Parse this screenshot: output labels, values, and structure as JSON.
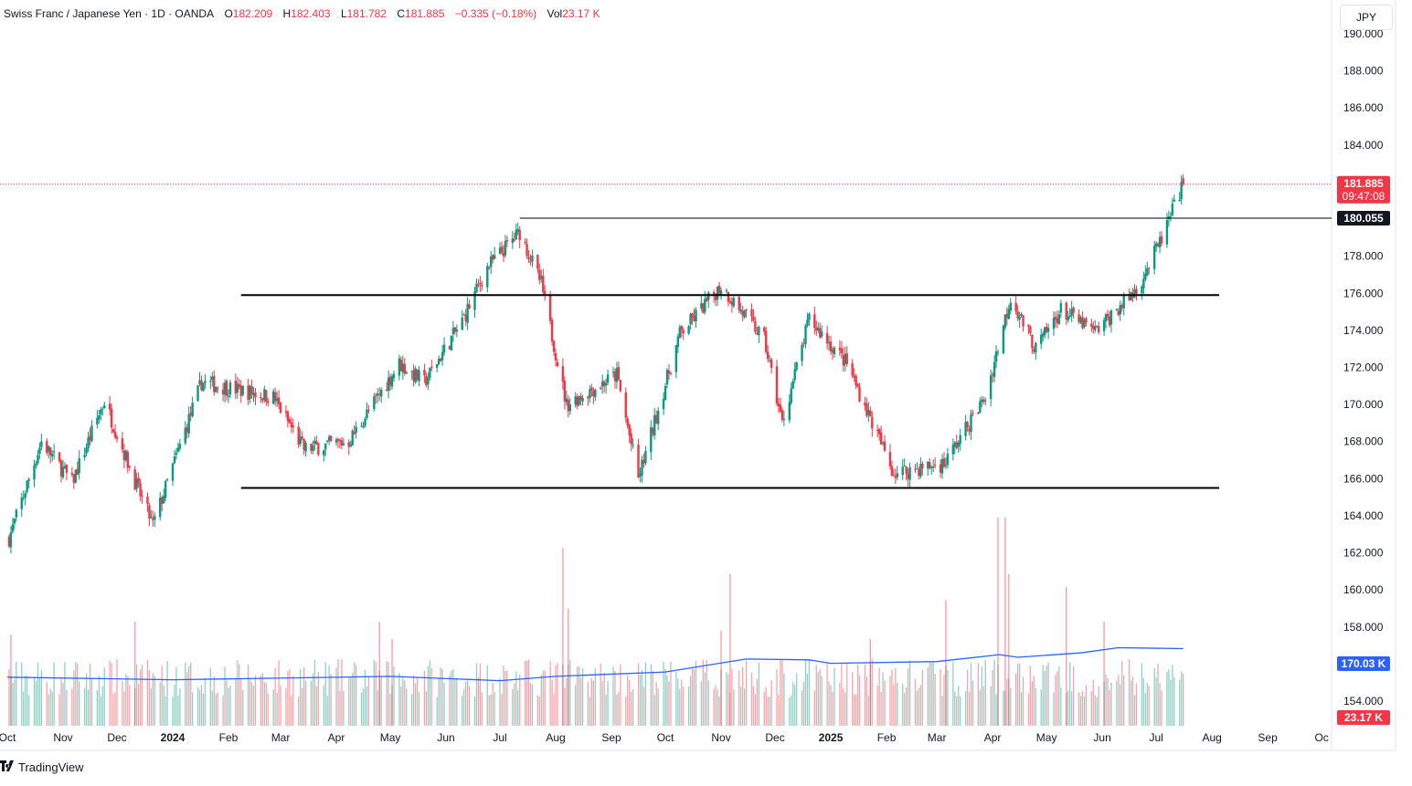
{
  "legend": {
    "title": "Swiss Franc / Japanese Yen · 1D · OANDA",
    "o_label": "O",
    "o_value": "182.209",
    "h_label": "H",
    "h_value": "182.403",
    "l_label": "L",
    "l_value": "181.782",
    "c_label": "C",
    "c_value": "181.885",
    "change": "−0.335 (−0.18%)",
    "vol_label": "Vol",
    "vol_value": "23.17 K"
  },
  "currency_button": "JPY",
  "footer": {
    "brand": "TradingView"
  },
  "colors": {
    "up": "#089981",
    "down": "#f23645",
    "vol_ma": "#2962ff",
    "price_line": "#f23645",
    "grid": "#f0f3fa"
  },
  "chart_data": {
    "type": "candlestick",
    "symbol": "CHFJPY",
    "timeframe": "1D",
    "y_axis": {
      "ticks": [
        "154.000",
        "156.000",
        "158.000",
        "160.000",
        "162.000",
        "164.000",
        "166.000",
        "168.000",
        "170.000",
        "172.000",
        "174.000",
        "176.000",
        "178.000",
        "180.000",
        "182.000",
        "184.000",
        "186.000",
        "188.000",
        "190.000"
      ],
      "range": [
        153.0,
        190.5
      ]
    },
    "x_axis": {
      "ticks": [
        {
          "label": "Oct",
          "bold": false
        },
        {
          "label": "Nov",
          "bold": false
        },
        {
          "label": "Dec",
          "bold": false
        },
        {
          "label": "2024",
          "bold": true
        },
        {
          "label": "Feb",
          "bold": false
        },
        {
          "label": "Mar",
          "bold": false
        },
        {
          "label": "Apr",
          "bold": false
        },
        {
          "label": "May",
          "bold": false
        },
        {
          "label": "Jun",
          "bold": false
        },
        {
          "label": "Jul",
          "bold": false
        },
        {
          "label": "Aug",
          "bold": false
        },
        {
          "label": "Sep",
          "bold": false
        },
        {
          "label": "Oct",
          "bold": false
        },
        {
          "label": "Nov",
          "bold": false
        },
        {
          "label": "Dec",
          "bold": false
        },
        {
          "label": "2025",
          "bold": true
        },
        {
          "label": "Feb",
          "bold": false
        },
        {
          "label": "Mar",
          "bold": false
        },
        {
          "label": "Apr",
          "bold": false
        },
        {
          "label": "May",
          "bold": false
        },
        {
          "label": "Jun",
          "bold": false
        },
        {
          "label": "Jul",
          "bold": false
        },
        {
          "label": "Aug",
          "bold": false
        },
        {
          "label": "Sep",
          "bold": false
        },
        {
          "label": "Oc",
          "bold": false
        }
      ],
      "range": [
        "2023-10-01",
        "2025-10-05"
      ]
    },
    "price_path": [
      {
        "date": "2023-10-01",
        "close": 162.5
      },
      {
        "date": "2023-10-20",
        "close": 168.0
      },
      {
        "date": "2023-11-06",
        "close": 165.8
      },
      {
        "date": "2023-11-24",
        "close": 170.2
      },
      {
        "date": "2023-12-12",
        "close": 165.6
      },
      {
        "date": "2023-12-21",
        "close": 163.5
      },
      {
        "date": "2024-01-17",
        "close": 171.2
      },
      {
        "date": "2024-02-26",
        "close": 170.4
      },
      {
        "date": "2024-03-14",
        "close": 167.6
      },
      {
        "date": "2024-04-08",
        "close": 168.0
      },
      {
        "date": "2024-05-06",
        "close": 172.2
      },
      {
        "date": "2024-05-20",
        "close": 171.2
      },
      {
        "date": "2024-06-10",
        "close": 174.5
      },
      {
        "date": "2024-06-24",
        "close": 177.4
      },
      {
        "date": "2024-07-12",
        "close": 179.3
      },
      {
        "date": "2024-07-24",
        "close": 176.5
      },
      {
        "date": "2024-08-07",
        "close": 170.0
      },
      {
        "date": "2024-09-04",
        "close": 171.6
      },
      {
        "date": "2024-09-16",
        "close": 166.0
      },
      {
        "date": "2024-10-09",
        "close": 173.8
      },
      {
        "date": "2024-11-01",
        "close": 176.4
      },
      {
        "date": "2024-11-25",
        "close": 173.5
      },
      {
        "date": "2024-12-05",
        "close": 169.0
      },
      {
        "date": "2024-12-20",
        "close": 174.6
      },
      {
        "date": "2025-01-10",
        "close": 172.2
      },
      {
        "date": "2025-02-05",
        "close": 166.3
      },
      {
        "date": "2025-03-05",
        "close": 166.8
      },
      {
        "date": "2025-03-28",
        "close": 170.4
      },
      {
        "date": "2025-04-11",
        "close": 175.8
      },
      {
        "date": "2025-04-25",
        "close": 173.0
      },
      {
        "date": "2025-05-09",
        "close": 175.1
      },
      {
        "date": "2025-05-28",
        "close": 173.9
      },
      {
        "date": "2025-06-20",
        "close": 176.2
      },
      {
        "date": "2025-07-03",
        "close": 178.7
      },
      {
        "date": "2025-07-16",
        "close": 181.885
      }
    ],
    "horizontal_lines": [
      {
        "name": "resistance-180",
        "value": 180.055,
        "from": "2024-07-12",
        "to": "axis"
      },
      {
        "name": "range-top",
        "value": 175.9,
        "from": "2024-02-08",
        "to": "2025-08-05"
      },
      {
        "name": "range-bottom",
        "value": 165.5,
        "from": "2024-02-08",
        "to": "2025-08-05"
      }
    ],
    "last_price": {
      "value": 181.885,
      "label": "181.885",
      "countdown": "09:47:08"
    },
    "level_label": {
      "value": 180.055,
      "label": "180.055"
    },
    "volume_ma_label": {
      "value": 170.03,
      "label": "170.03 K"
    },
    "volume_label": "23.17 K",
    "volume": {
      "ma_path": [
        {
          "date": "2023-10-01",
          "ma": 0.56
        },
        {
          "date": "2024-01-01",
          "ma": 0.53
        },
        {
          "date": "2024-05-01",
          "ma": 0.57
        },
        {
          "date": "2024-07-01",
          "ma": 0.52
        },
        {
          "date": "2024-08-01",
          "ma": 0.57
        },
        {
          "date": "2024-10-01",
          "ma": 0.62
        },
        {
          "date": "2024-11-15",
          "ma": 0.77
        },
        {
          "date": "2024-12-20",
          "ma": 0.76
        },
        {
          "date": "2025-01-01",
          "ma": 0.72
        },
        {
          "date": "2025-03-01",
          "ma": 0.74
        },
        {
          "date": "2025-04-05",
          "ma": 0.82
        },
        {
          "date": "2025-04-15",
          "ma": 0.79
        },
        {
          "date": "2025-05-20",
          "ma": 0.84
        },
        {
          "date": "2025-06-10",
          "ma": 0.9
        },
        {
          "date": "2025-07-16",
          "ma": 0.89
        }
      ],
      "spikes": [
        {
          "date": "2023-10-03",
          "v": 1.05
        },
        {
          "date": "2023-12-11",
          "v": 1.2
        },
        {
          "date": "2024-04-25",
          "v": 1.2
        },
        {
          "date": "2024-05-02",
          "v": 1.0
        },
        {
          "date": "2024-08-05",
          "v": 2.05
        },
        {
          "date": "2024-08-08",
          "v": 1.35
        },
        {
          "date": "2024-11-06",
          "v": 1.75
        },
        {
          "date": "2024-11-01",
          "v": 1.1
        },
        {
          "date": "2025-01-23",
          "v": 1.0
        },
        {
          "date": "2025-03-06",
          "v": 1.45
        },
        {
          "date": "2025-04-04",
          "v": 2.4
        },
        {
          "date": "2025-04-08",
          "v": 2.4
        },
        {
          "date": "2025-04-10",
          "v": 1.75
        },
        {
          "date": "2025-05-12",
          "v": 1.6
        },
        {
          "date": "2025-06-02",
          "v": 1.2
        }
      ],
      "base_level": 0.55,
      "latest": 0.6
    }
  }
}
